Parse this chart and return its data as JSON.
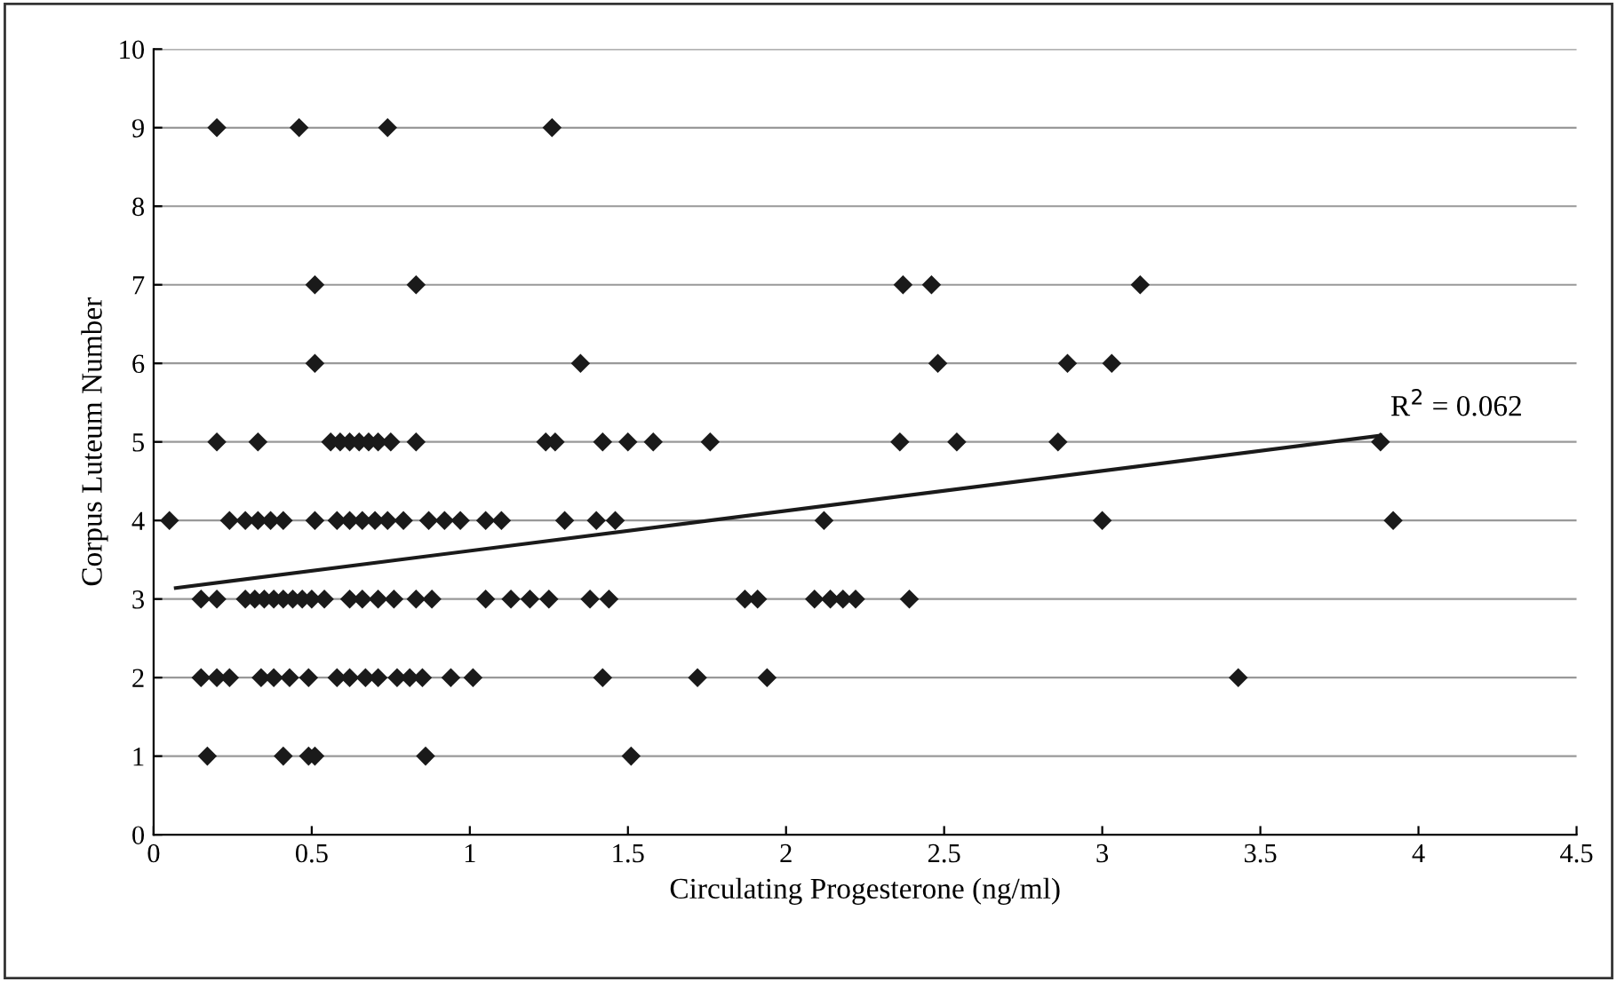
{
  "chart_data": {
    "type": "scatter",
    "xlabel": "Circulating Progesterone (ng/ml)",
    "ylabel": "Corpus Luteum Number",
    "xlim": [
      0,
      4.5
    ],
    "xticks": [
      0,
      0.5,
      1,
      1.5,
      2,
      2.5,
      3,
      3.5,
      4,
      4.5
    ],
    "ylim": [
      0,
      10
    ],
    "yticks": [
      0,
      1,
      2,
      3,
      4,
      5,
      6,
      7,
      8,
      9,
      10
    ],
    "grid": "y",
    "marker": "diamond",
    "legend": false,
    "series": [
      {
        "color": "#1a1a1a",
        "x": [
          0.2,
          0.46,
          0.74,
          1.26,
          0.51,
          0.83,
          2.37,
          2.46,
          3.12,
          0.51,
          1.35,
          2.48,
          2.89,
          3.03,
          0.2,
          0.33,
          0.56,
          0.59,
          0.62,
          0.65,
          0.68,
          0.71,
          0.75,
          0.83,
          1.24,
          1.27,
          1.42,
          1.5,
          1.58,
          1.76,
          2.36,
          2.54,
          2.86,
          3.88,
          0.05,
          0.24,
          0.29,
          0.33,
          0.37,
          0.41,
          0.51,
          0.58,
          0.62,
          0.66,
          0.7,
          0.74,
          0.79,
          0.87,
          0.92,
          0.97,
          1.05,
          1.1,
          1.3,
          1.4,
          1.46,
          2.12,
          3.0,
          3.92,
          0.15,
          0.2,
          0.29,
          0.32,
          0.35,
          0.38,
          0.41,
          0.44,
          0.47,
          0.5,
          0.54,
          0.62,
          0.66,
          0.71,
          0.76,
          0.83,
          0.88,
          1.05,
          1.13,
          1.19,
          1.25,
          1.38,
          1.44,
          1.87,
          1.91,
          2.09,
          2.14,
          2.18,
          2.22,
          2.39,
          0.15,
          0.2,
          0.24,
          0.34,
          0.38,
          0.43,
          0.49,
          0.58,
          0.62,
          0.67,
          0.71,
          0.77,
          0.81,
          0.85,
          0.94,
          1.01,
          1.42,
          1.72,
          1.94,
          3.43,
          0.17,
          0.41,
          0.49,
          0.51,
          0.86,
          1.51
        ],
        "values": [
          9,
          9,
          9,
          9,
          7,
          7,
          7,
          7,
          7,
          6,
          6,
          6,
          6,
          6,
          5,
          5,
          5,
          5,
          5,
          5,
          5,
          5,
          5,
          5,
          5,
          5,
          5,
          5,
          5,
          5,
          5,
          5,
          5,
          5,
          4,
          4,
          4,
          4,
          4,
          4,
          4,
          4,
          4,
          4,
          4,
          4,
          4,
          4,
          4,
          4,
          4,
          4,
          4,
          4,
          4,
          4,
          4,
          4,
          3,
          3,
          3,
          3,
          3,
          3,
          3,
          3,
          3,
          3,
          3,
          3,
          3,
          3,
          3,
          3,
          3,
          3,
          3,
          3,
          3,
          3,
          3,
          3,
          3,
          3,
          3,
          3,
          3,
          3,
          2,
          2,
          2,
          2,
          2,
          2,
          2,
          2,
          2,
          2,
          2,
          2,
          2,
          2,
          2,
          2,
          2,
          2,
          2,
          2,
          1,
          1,
          1,
          1,
          1,
          1
        ]
      },
      {
        "type": "line",
        "marker": "none",
        "color": "#1a1a1a",
        "x": [
          0.07,
          3.88
        ],
        "values": [
          3.14,
          5.08
        ]
      }
    ],
    "annotations": [
      "R$^{2}$ = 0.062"
    ]
  }
}
